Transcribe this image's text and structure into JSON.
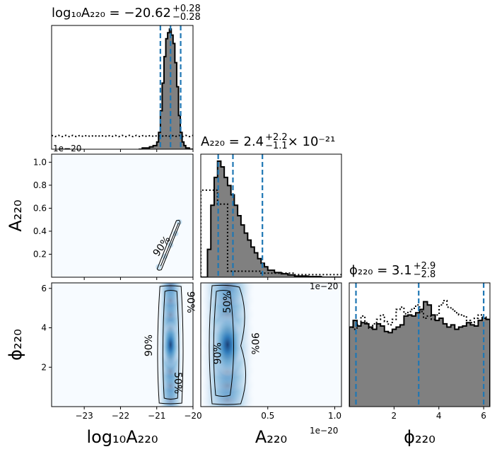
{
  "chart_data": {
    "type": "corner",
    "parameters": [
      "log10_A220",
      "A220",
      "phi220"
    ],
    "colors": {
      "hist_fill": "#808080",
      "hist_edge": "#000000",
      "quantile_lines": "#1f77b4",
      "prior_line": "#000000",
      "density_cmap_low": "#f7fbff",
      "density_cmap_high": "#08306b"
    },
    "diag": [
      {
        "param": "log10_A220",
        "title": {
          "main": "log₁₀A₂₂₀ = −20.62",
          "upper": "+0.28",
          "lower": "−0.28"
        },
        "xlim": [
          -23.9,
          -20.0
        ],
        "bins": [
          -21.5,
          -21.4,
          -21.3,
          -21.2,
          -21.1,
          -21.0,
          -20.95,
          -20.9,
          -20.85,
          -20.8,
          -20.75,
          -20.7,
          -20.65,
          -20.6,
          -20.55,
          -20.5,
          -20.45,
          -20.4,
          -20.35,
          -20.3,
          -20.25,
          -20.2,
          -20.1,
          -20.0
        ],
        "counts": [
          0.0,
          0.01,
          0.01,
          0.02,
          0.03,
          0.06,
          0.14,
          0.32,
          0.55,
          0.77,
          0.92,
          0.97,
          1.0,
          0.95,
          0.88,
          0.72,
          0.52,
          0.28,
          0.14,
          0.06,
          0.03,
          0.01,
          0.0
        ],
        "prior_level": 0.11,
        "quantiles": [
          -20.9,
          -20.62,
          -20.34
        ]
      },
      {
        "param": "A220",
        "title": {
          "main": "A₂₂₀ = 2.4",
          "upper": "+2.2",
          "lower": "−1.1",
          "suffix": " × 10⁻²¹"
        },
        "xlim": [
          0.0,
          1.05
        ],
        "scale_note": "1e−20",
        "bins": [
          0.0,
          0.05,
          0.075,
          0.1,
          0.125,
          0.15,
          0.175,
          0.2,
          0.225,
          0.25,
          0.275,
          0.3,
          0.325,
          0.35,
          0.375,
          0.4,
          0.425,
          0.45,
          0.475,
          0.5,
          0.55,
          0.6,
          0.65,
          0.7,
          0.8,
          0.9,
          1.05
        ],
        "counts": [
          0.0,
          0.24,
          0.62,
          0.86,
          1.0,
          0.95,
          0.86,
          0.79,
          0.71,
          0.62,
          0.53,
          0.45,
          0.38,
          0.32,
          0.26,
          0.21,
          0.16,
          0.12,
          0.09,
          0.06,
          0.04,
          0.03,
          0.02,
          0.01,
          0.005,
          0.0
        ],
        "prior_steps": [
          [
            0.0,
            0.75
          ],
          [
            0.125,
            0.63
          ],
          [
            0.2,
            0.052
          ],
          [
            0.45,
            0.035
          ],
          [
            0.7,
            0.022
          ],
          [
            1.05,
            0.022
          ]
        ],
        "quantiles": [
          0.13,
          0.24,
          0.46
        ]
      },
      {
        "param": "phi220",
        "title": {
          "main": "ϕ₂₂₀ = 3.1",
          "upper": "+2.9",
          "lower": "−2.8"
        },
        "xlim": [
          0.0,
          6.28
        ],
        "counts": [
          0.72,
          0.78,
          0.73,
          0.76,
          0.75,
          0.72,
          0.7,
          0.75,
          0.73,
          0.68,
          0.67,
          0.7,
          0.72,
          0.74,
          0.82,
          0.83,
          0.82,
          0.85,
          0.88,
          0.95,
          0.92,
          0.83,
          0.78,
          0.8,
          0.75,
          0.72,
          0.74,
          0.7,
          0.72,
          0.73,
          0.76,
          0.74,
          0.73,
          0.78,
          0.8,
          0.79
        ],
        "prior_counts": [
          0.72,
          0.7,
          0.74,
          0.82,
          0.76,
          0.71,
          0.75,
          0.79,
          0.83,
          0.77,
          0.74,
          0.79,
          0.88,
          0.9,
          0.84,
          0.86,
          0.89,
          0.92,
          0.86,
          0.8,
          0.82,
          0.79,
          0.83,
          0.92,
          0.96,
          0.9,
          0.88,
          0.85,
          0.83,
          0.82,
          0.78,
          0.76,
          0.8,
          0.83,
          0.81,
          0.79
        ],
        "quantiles": [
          0.3,
          3.1,
          6.0
        ]
      }
    ],
    "pairs": [
      {
        "row": 1,
        "col": 0,
        "x_param": "log10_A220",
        "y_param": "A220",
        "xlim": [
          -23.9,
          -20.0
        ],
        "ylim": [
          0.0,
          1.07
        ],
        "contour_label": "90%",
        "ridge": [
          [
            -20.95,
            0.09
          ],
          [
            -20.78,
            0.18
          ],
          [
            -20.62,
            0.28
          ],
          [
            -20.48,
            0.38
          ],
          [
            -20.38,
            0.48
          ]
        ]
      },
      {
        "row": 2,
        "col": 0,
        "x_param": "log10_A220",
        "y_param": "phi220",
        "xlim": [
          -23.9,
          -20.0
        ],
        "ylim": [
          0.0,
          6.28
        ],
        "center": [
          -20.62,
          3.14
        ],
        "contour_labels": [
          "90%",
          "90%",
          "50%"
        ]
      },
      {
        "row": 2,
        "col": 1,
        "x_param": "A220",
        "y_param": "phi220",
        "xlim": [
          0.0,
          1.05
        ],
        "ylim": [
          0.0,
          6.28
        ],
        "center": [
          0.2,
          3.14
        ],
        "contour_labels": [
          "50%",
          "90%",
          "90%"
        ]
      }
    ],
    "ticks": {
      "log10_A220_x": [
        -23,
        -22,
        -21,
        -20
      ],
      "A220_x": [
        0.5,
        1.0
      ],
      "A220_y": [
        0.2,
        0.4,
        0.6,
        0.8,
        1.0
      ],
      "phi220_x": [
        2,
        4,
        6
      ],
      "phi220_y": [
        2,
        4,
        6
      ]
    },
    "tick_labels": {
      "log10_A220_x": [
        "−23",
        "−22",
        "−21",
        "−20"
      ],
      "A220_x": [
        "0.5",
        "1.0"
      ],
      "A220_y": [
        "0.2",
        "0.4",
        "0.6",
        "0.8",
        "1.0"
      ],
      "phi220_x": [
        "2",
        "4",
        "6"
      ],
      "phi220_y": [
        "2",
        "4",
        "6"
      ]
    },
    "axis_labels": {
      "log10_A220": "log₁₀A₂₂₀",
      "A220": "A₂₂₀",
      "phi220": "ϕ₂₂₀"
    },
    "offset_labels": {
      "top_left": "1e−20",
      "mid": "1e−20",
      "bottom": "1e−20"
    }
  }
}
